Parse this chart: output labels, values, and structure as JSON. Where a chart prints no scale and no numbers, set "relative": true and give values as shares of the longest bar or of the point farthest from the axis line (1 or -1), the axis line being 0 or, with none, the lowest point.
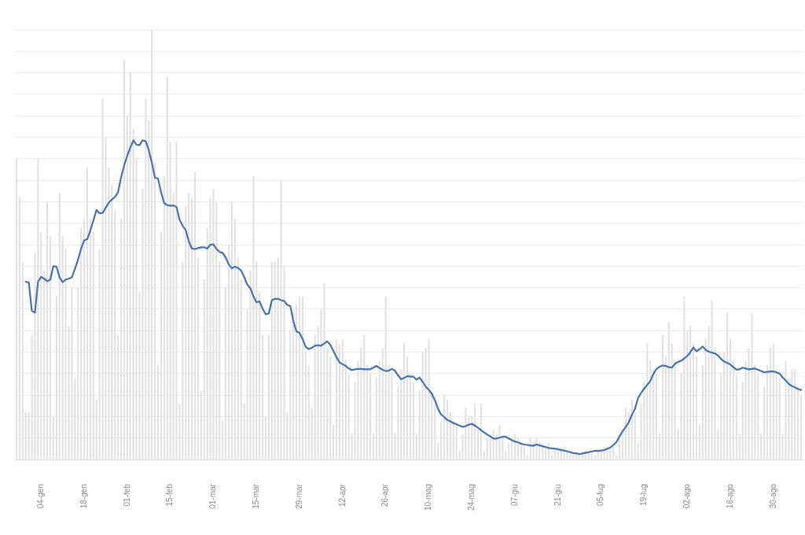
{
  "chart_data": {
    "type": "bar",
    "relative": true,
    "grid": "y",
    "categories": [
      null,
      null,
      null,
      null,
      null,
      null,
      null,
      null,
      "04-gen",
      null,
      null,
      null,
      null,
      null,
      null,
      null,
      null,
      null,
      null,
      null,
      null,
      null,
      "18-gen",
      null,
      null,
      null,
      null,
      null,
      null,
      null,
      null,
      null,
      null,
      null,
      null,
      null,
      "01-feb",
      null,
      null,
      null,
      null,
      null,
      null,
      null,
      null,
      null,
      null,
      null,
      null,
      null,
      "15-feb",
      null,
      null,
      null,
      null,
      null,
      null,
      null,
      null,
      null,
      null,
      null,
      null,
      null,
      "01-mar",
      null,
      null,
      null,
      null,
      null,
      null,
      null,
      null,
      null,
      null,
      null,
      null,
      null,
      "15-mar",
      null,
      null,
      null,
      null,
      null,
      null,
      null,
      null,
      null,
      null,
      null,
      null,
      null,
      "29-mar",
      null,
      null,
      null,
      null,
      null,
      null,
      null,
      null,
      null,
      null,
      null,
      null,
      null,
      "12-apr",
      null,
      null,
      null,
      null,
      null,
      null,
      null,
      null,
      null,
      null,
      null,
      null,
      null,
      "26-apr",
      null,
      null,
      null,
      null,
      null,
      null,
      null,
      null,
      null,
      null,
      null,
      null,
      null,
      "10-mag",
      null,
      null,
      null,
      null,
      null,
      null,
      null,
      null,
      null,
      null,
      null,
      null,
      null,
      "24-mag",
      null,
      null,
      null,
      null,
      null,
      null,
      null,
      null,
      null,
      null,
      null,
      null,
      null,
      "07-giu",
      null,
      null,
      null,
      null,
      null,
      null,
      null,
      null,
      null,
      null,
      null,
      null,
      null,
      "21-giu",
      null,
      null,
      null,
      null,
      null,
      null,
      null,
      null,
      null,
      null,
      null,
      null,
      null,
      "05-lug",
      null,
      null,
      null,
      null,
      null,
      null,
      null,
      null,
      null,
      null,
      null,
      null,
      null,
      "19-lug",
      null,
      null,
      null,
      null,
      null,
      null,
      null,
      null,
      null,
      null,
      null,
      null,
      null,
      "02-ago",
      null,
      null,
      null,
      null,
      null,
      null,
      null,
      null,
      null,
      null,
      null,
      null,
      null,
      "16-ago",
      null,
      null,
      null,
      null,
      null,
      null,
      null,
      null,
      null,
      null,
      null,
      null,
      null,
      "30-ago",
      null,
      null,
      null,
      null,
      null,
      null,
      null,
      null,
      null
    ],
    "series": [
      {
        "color": "#e2e2e2",
        "values": [
          0.7,
          0.61,
          0.46,
          0.11,
          0.11,
          0.29,
          0.48,
          0.7,
          0.53,
          0.44,
          0.6,
          0.52,
          0.1,
          0.38,
          0.62,
          0.52,
          0.49,
          0.31,
          0.4,
          0.19,
          0.4,
          0.54,
          0.56,
          0.68,
          0.56,
          0.53,
          0.14,
          0.49,
          0.84,
          0.75,
          0.68,
          0.64,
          0.58,
          0.29,
          0.56,
          0.93,
          0.8,
          0.9,
          0.77,
          0.7,
          0.39,
          0.63,
          0.84,
          0.79,
          1.0,
          0.69,
          0.22,
          0.53,
          0.66,
          0.89,
          0.74,
          0.62,
          0.74,
          0.13,
          0.46,
          0.59,
          0.62,
          0.61,
          0.67,
          0.47,
          0.16,
          0.42,
          0.54,
          0.61,
          0.63,
          0.6,
          0.46,
          0.09,
          0.4,
          0.5,
          0.6,
          0.56,
          0.47,
          0.42,
          0.13,
          0.35,
          0.44,
          0.66,
          0.46,
          0.39,
          0.29,
          0.1,
          0.29,
          0.46,
          0.46,
          0.47,
          0.65,
          0.45,
          0.11,
          0.3,
          0.35,
          0.36,
          0.38,
          0.38,
          0.25,
          0.22,
          0.12,
          0.29,
          0.31,
          0.35,
          0.41,
          0.26,
          0.24,
          0.08,
          0.28,
          0.27,
          0.28,
          0.23,
          0.2,
          0.06,
          0.18,
          0.23,
          0.26,
          0.29,
          0.22,
          0.2,
          0.06,
          0.19,
          0.23,
          0.26,
          0.38,
          0.22,
          0.2,
          0.06,
          0.17,
          0.21,
          0.27,
          0.24,
          0.2,
          0.18,
          0.06,
          0.16,
          0.25,
          0.26,
          0.28,
          0.16,
          0.13,
          0.04,
          0.09,
          0.15,
          0.14,
          0.11,
          0.09,
          0.08,
          0.02,
          0.06,
          0.12,
          0.1,
          0.1,
          0.13,
          0.07,
          0.13,
          0.02,
          0.05,
          0.06,
          0.07,
          0.06,
          0.08,
          0.05,
          0.02,
          0.04,
          0.05,
          0.06,
          0.05,
          0.04,
          0.03,
          0.01,
          0.05,
          0.04,
          0.05,
          0.04,
          0.03,
          0.03,
          0.04,
          0.01,
          0.02,
          0.03,
          0.03,
          0.03,
          0.02,
          0.02,
          0.01,
          0.01,
          0.01,
          0.02,
          0.02,
          0.02,
          0.02,
          0.01,
          0.02,
          0.02,
          0.03,
          0.03,
          0.03,
          0.03,
          0.01,
          0.05,
          0.07,
          0.12,
          0.11,
          0.14,
          0.11,
          0.04,
          0.13,
          0.18,
          0.27,
          0.23,
          0.21,
          0.2,
          0.06,
          0.29,
          0.24,
          0.32,
          0.27,
          0.23,
          0.07,
          0.2,
          0.38,
          0.3,
          0.31,
          0.27,
          0.24,
          0.08,
          0.22,
          0.28,
          0.31,
          0.37,
          0.26,
          0.07,
          0.2,
          0.25,
          0.34,
          0.28,
          0.23,
          0.2,
          0.06,
          0.18,
          0.23,
          0.26,
          0.34,
          0.22,
          0.2,
          0.06,
          0.17,
          0.22,
          0.26,
          0.27,
          0.21,
          0.19,
          0.06,
          0.23,
          0.19,
          0.21,
          0.21,
          0.17,
          0.15
        ]
      },
      {
        "type": "line",
        "color": "#4872b0",
        "values": [
          null,
          null,
          null,
          0.414,
          0.412,
          0.346,
          0.342,
          0.414,
          0.425,
          0.421,
          0.415,
          0.419,
          0.45,
          0.449,
          0.424,
          0.413,
          0.419,
          0.421,
          0.424,
          0.444,
          0.465,
          0.491,
          0.51,
          0.513,
          0.533,
          0.556,
          0.581,
          0.573,
          0.574,
          0.586,
          0.598,
          0.605,
          0.611,
          0.622,
          0.657,
          0.685,
          0.707,
          0.726,
          0.743,
          0.733,
          0.732,
          0.743,
          0.741,
          0.72,
          0.691,
          0.656,
          0.654,
          0.622,
          0.597,
          0.592,
          0.591,
          0.591,
          0.588,
          0.558,
          0.544,
          0.534,
          0.508,
          0.491,
          0.49,
          0.492,
          0.494,
          0.494,
          0.491,
          0.5,
          0.501,
          0.49,
          0.483,
          0.481,
          0.47,
          0.454,
          0.445,
          0.449,
          0.446,
          0.44,
          0.425,
          0.407,
          0.399,
          0.38,
          0.366,
          0.368,
          0.351,
          0.338,
          0.34,
          0.371,
          0.374,
          0.374,
          0.371,
          0.369,
          0.36,
          0.357,
          0.322,
          0.298,
          0.295,
          0.28,
          0.262,
          0.257,
          0.26,
          0.265,
          0.266,
          0.265,
          0.27,
          0.275,
          0.267,
          0.253,
          0.238,
          0.226,
          0.222,
          0.218,
          0.212,
          0.208,
          0.21,
          0.211,
          0.211,
          0.21,
          0.21,
          0.21,
          0.214,
          0.218,
          0.213,
          0.209,
          0.206,
          0.207,
          0.211,
          0.207,
          0.196,
          0.187,
          0.19,
          0.194,
          0.193,
          0.193,
          0.186,
          0.191,
          0.181,
          0.17,
          0.162,
          0.153,
          0.138,
          0.118,
          0.105,
          0.099,
          0.092,
          0.089,
          0.085,
          0.082,
          0.079,
          0.076,
          0.078,
          0.081,
          0.083,
          0.079,
          0.074,
          0.068,
          0.063,
          0.058,
          0.054,
          0.049,
          0.049,
          0.051,
          0.053,
          0.053,
          0.049,
          0.045,
          0.042,
          0.04,
          0.037,
          0.035,
          0.034,
          0.033,
          0.032,
          0.035,
          0.033,
          0.031,
          0.029,
          0.027,
          0.026,
          0.025,
          0.024,
          0.022,
          0.021,
          0.019,
          0.017,
          0.015,
          0.014,
          0.013,
          0.014,
          0.016,
          0.017,
          0.019,
          0.02,
          0.02,
          0.021,
          0.022,
          0.025,
          0.028,
          0.034,
          0.041,
          0.054,
          0.066,
          0.076,
          0.087,
          0.104,
          0.118,
          0.143,
          0.155,
          0.165,
          0.174,
          0.183,
          0.199,
          0.211,
          0.216,
          0.219,
          0.218,
          0.215,
          0.214,
          0.223,
          0.227,
          0.23,
          0.235,
          0.241,
          0.25,
          0.261,
          0.252,
          0.257,
          0.263,
          0.255,
          0.251,
          0.249,
          0.247,
          0.242,
          0.234,
          0.228,
          0.225,
          0.221,
          0.215,
          0.209,
          0.21,
          0.214,
          0.212,
          0.21,
          0.211,
          0.212,
          0.209,
          0.206,
          0.203,
          0.204,
          0.205,
          0.205,
          0.203,
          0.2,
          0.191,
          0.184,
          0.176,
          0.171,
          0.168,
          0.164,
          0.162
        ]
      }
    ]
  }
}
